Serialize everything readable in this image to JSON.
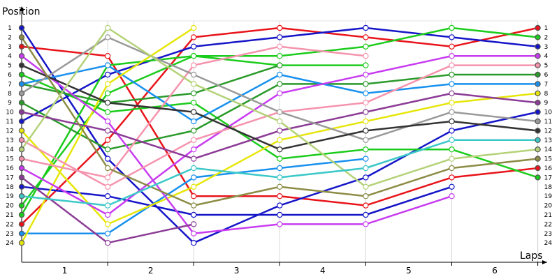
{
  "chart_data": {
    "type": "line",
    "title": "",
    "ylabel": "Position",
    "xlabel": "Laps",
    "y_range": [
      1,
      24
    ],
    "y_inverted": true,
    "x_categories": [
      "1",
      "2",
      "3",
      "4",
      "5",
      "6"
    ],
    "grid": "vertical-only",
    "y_ticks": [
      1,
      2,
      3,
      4,
      5,
      6,
      7,
      8,
      9,
      10,
      11,
      12,
      13,
      14,
      15,
      16,
      17,
      18,
      19,
      20,
      21,
      22,
      23,
      24
    ],
    "x": [
      0,
      1,
      2,
      3,
      4,
      5,
      6
    ],
    "series": [
      {
        "color": "#e8141a",
        "values": [
          3,
          4,
          19,
          19,
          20,
          17,
          16
        ]
      },
      {
        "color": "#e8141a",
        "values": [
          22,
          13,
          2,
          1,
          2,
          3,
          1
        ]
      },
      {
        "color": "#1515c8",
        "values": [
          1,
          15,
          24,
          20,
          17,
          12,
          10
        ]
      },
      {
        "color": "#1515c8",
        "values": [
          11,
          6,
          3,
          2,
          1,
          2,
          3
        ]
      },
      {
        "color": "#1515c8",
        "values": [
          18,
          19,
          21,
          21,
          21,
          18,
          null
        ]
      },
      {
        "color": "#1ccc1c",
        "values": [
          21,
          5,
          4,
          4,
          3,
          1,
          2
        ]
      },
      {
        "color": "#1ccc1c",
        "values": [
          6,
          10,
          9,
          15,
          14,
          14,
          17
        ]
      },
      {
        "color": "#1ccc1c",
        "values": [
          20,
          8,
          4,
          5,
          5,
          null,
          null
        ]
      },
      {
        "color": "#2a9a2a",
        "values": [
          9,
          14,
          12,
          7,
          7,
          6,
          6
        ]
      },
      {
        "color": "#2a9a2a",
        "values": [
          7,
          9,
          8,
          5,
          null,
          null,
          null
        ]
      },
      {
        "color": "#1890ee",
        "values": [
          7,
          5,
          11,
          6,
          8,
          7,
          7
        ]
      },
      {
        "color": "#1890ee",
        "values": [
          23,
          23,
          17,
          16,
          15,
          null,
          null
        ]
      },
      {
        "color": "#e6e60a",
        "values": [
          24,
          7,
          1,
          null,
          null,
          null,
          null
        ]
      },
      {
        "color": "#e6e60a",
        "values": [
          12,
          22,
          18,
          13,
          11,
          9,
          8
        ]
      },
      {
        "color": "#c83cf0",
        "values": [
          4,
          11,
          23,
          22,
          22,
          19,
          null
        ]
      },
      {
        "color": "#c83cf0",
        "values": [
          16,
          21,
          14,
          8,
          6,
          4,
          4
        ]
      },
      {
        "color": "#f593ad",
        "values": [
          15,
          17,
          5,
          3,
          4,
          null,
          null
        ]
      },
      {
        "color": "#f593ad",
        "values": [
          13,
          18,
          13,
          10,
          9,
          5,
          5
        ]
      },
      {
        "color": "#8c3c96",
        "values": [
          10,
          12,
          15,
          12,
          10,
          8,
          9
        ]
      },
      {
        "color": "#8c3c96",
        "values": [
          17,
          24,
          22,
          null,
          null,
          null,
          null
        ]
      },
      {
        "color": "#9a9a9a",
        "values": [
          8,
          2,
          6,
          10,
          13,
          10,
          11
        ]
      },
      {
        "color": "#333333",
        "values": [
          5,
          9,
          10,
          14,
          12,
          11,
          12
        ]
      },
      {
        "color": "#8c8c46",
        "values": [
          2,
          16,
          20,
          18,
          19,
          16,
          15
        ]
      },
      {
        "color": "#b4d278",
        "values": [
          14,
          1,
          7,
          11,
          18,
          15,
          14
        ]
      },
      {
        "color": "#3cc8c8",
        "values": [
          19,
          20,
          16,
          17,
          16,
          13,
          13
        ]
      }
    ]
  }
}
